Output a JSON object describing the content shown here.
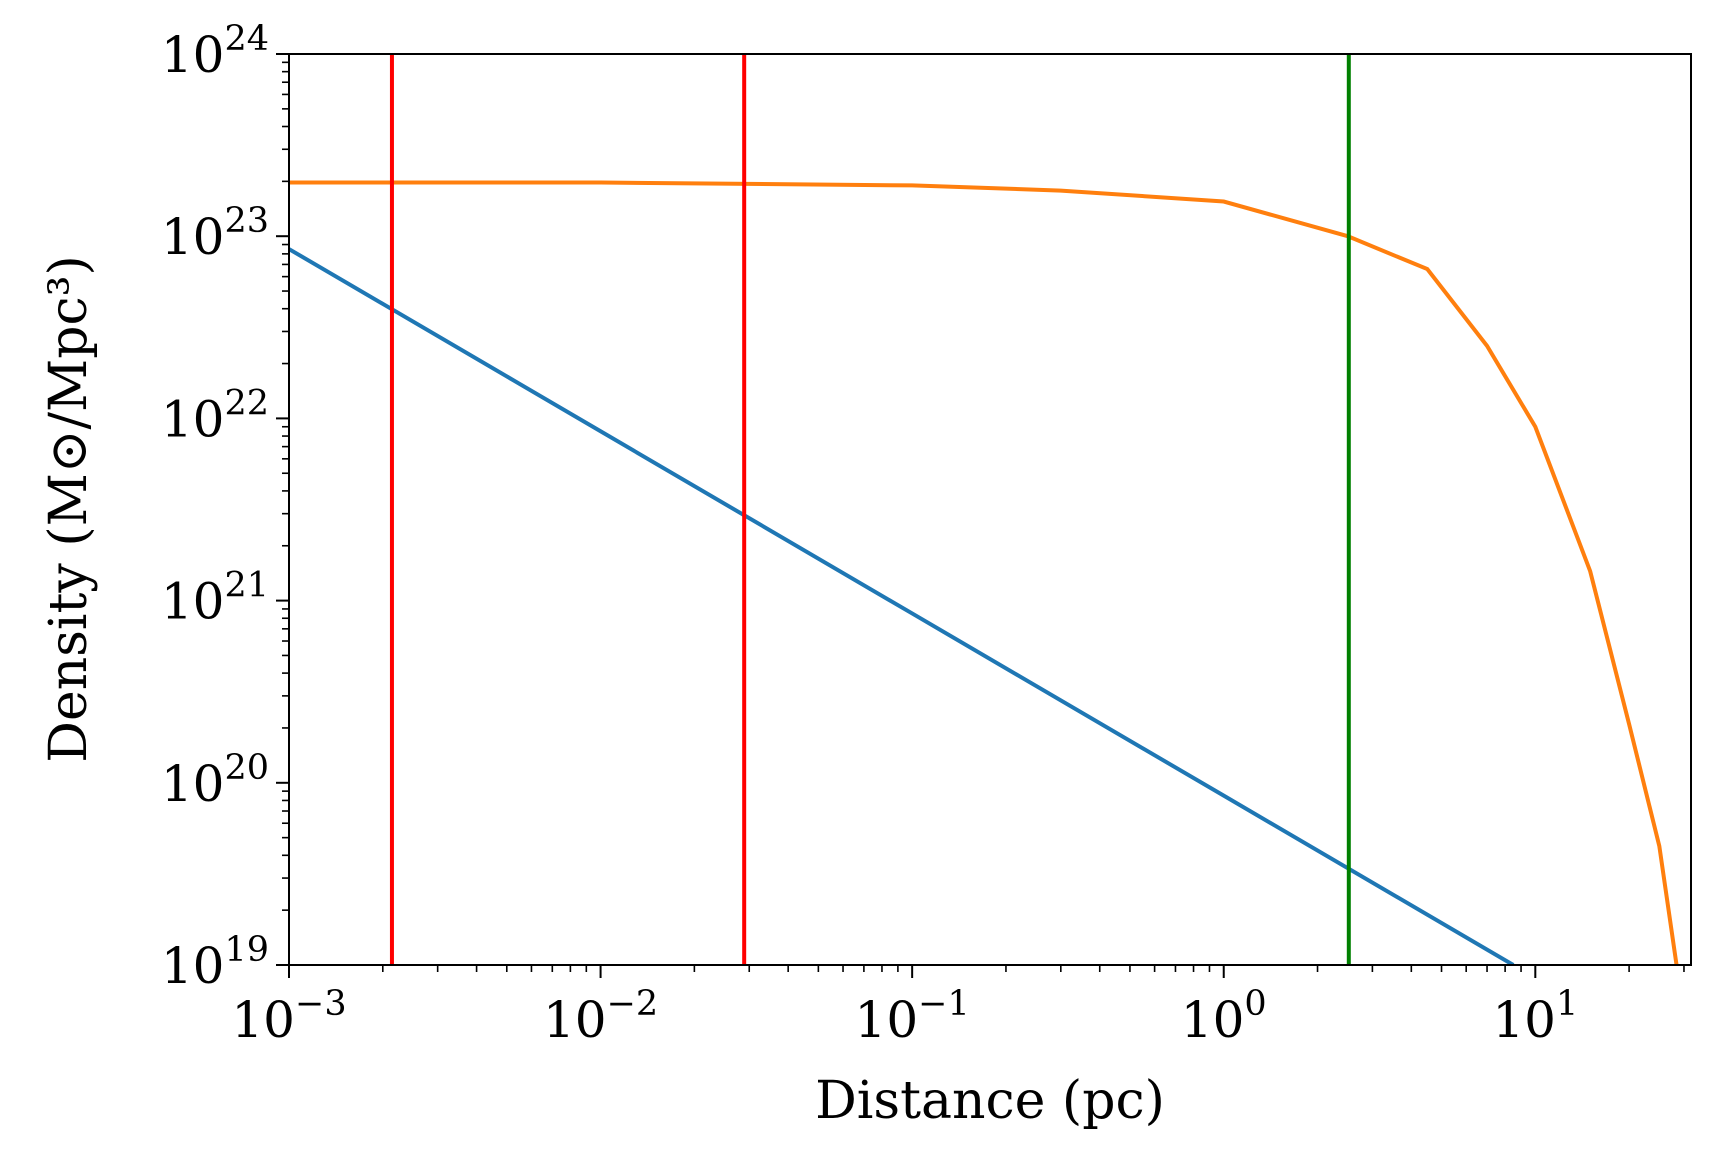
{
  "chart_data": {
    "type": "line",
    "xlabel": "Distance (pc)",
    "ylabel": "Density (M⊙/Mpc³)",
    "xscale": "log",
    "yscale": "log",
    "xlim": [
      0.001,
      31.6
    ],
    "ylim": [
      1e+19,
      1e+24
    ],
    "xticks": [
      {
        "value": 0.001,
        "label": "10",
        "exponent": "−3"
      },
      {
        "value": 0.01,
        "label": "10",
        "exponent": "−2"
      },
      {
        "value": 0.1,
        "label": "10",
        "exponent": "−1"
      },
      {
        "value": 1,
        "label": "10",
        "exponent": "0"
      },
      {
        "value": 10,
        "label": "10",
        "exponent": "1"
      }
    ],
    "yticks": [
      {
        "value": 1e+19,
        "label": "10",
        "exponent": "19"
      },
      {
        "value": 1e+20,
        "label": "10",
        "exponent": "20"
      },
      {
        "value": 1e+21,
        "label": "10",
        "exponent": "21"
      },
      {
        "value": 1e+22,
        "label": "10",
        "exponent": "22"
      },
      {
        "value": 1e+23,
        "label": "10",
        "exponent": "23"
      },
      {
        "value": 1e+24,
        "label": "10",
        "exponent": "24"
      }
    ],
    "series": [
      {
        "color": "#1f77b4",
        "x": [
          0.001,
          0.01,
          0.1,
          1,
          8.5
        ],
        "values": [
          8.5e+22,
          8.5e+21,
          8.5e+20,
          8.5e+19,
          1e+19
        ]
      },
      {
        "color": "#ff7f0e",
        "x": [
          0.001,
          0.01,
          0.1,
          0.3,
          1,
          2.5,
          4.5,
          7,
          10,
          15,
          20,
          25,
          28.4
        ],
        "values": [
          1.97e+23,
          1.97e+23,
          1.9e+23,
          1.78e+23,
          1.55e+23,
          1e+23,
          6.6e+22,
          2.5e+22,
          9e+21,
          1.45e+21,
          2.1e+20,
          4.5e+19,
          1e+19
        ]
      }
    ],
    "vlines": [
      {
        "x": 0.00214,
        "color": "#ff0000"
      },
      {
        "x": 0.0289,
        "color": "#ff0000"
      },
      {
        "x": 2.52,
        "color": "#008000"
      }
    ],
    "minor_ticks": true
  }
}
